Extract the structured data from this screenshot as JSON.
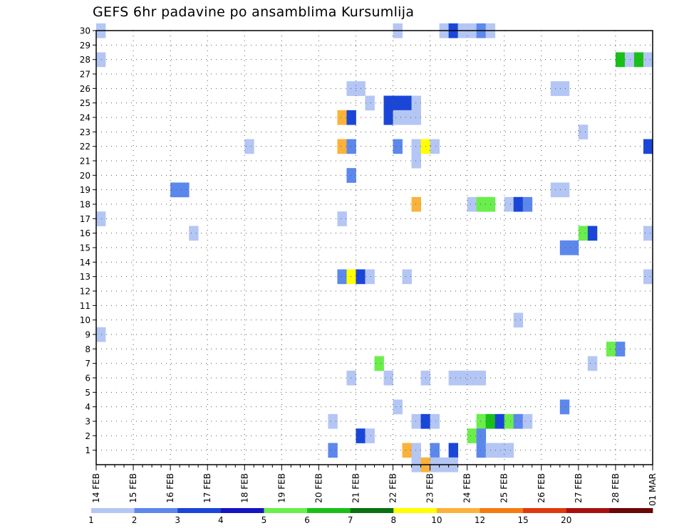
{
  "chart_data": {
    "type": "heatmap",
    "title": "GEFS 6hr padavine po ansamblima Kursumlija",
    "xlabel": "",
    "ylabel": "",
    "x_ticks": [
      "14 FEB",
      "15 FEB",
      "16 FEB",
      "17 FEB",
      "18 FEB",
      "19 FEB",
      "20 FEB",
      "21 FEB",
      "22 FEB",
      "23 FEB",
      "24 FEB",
      "25 FEB",
      "26 FEB",
      "27 FEB",
      "28 FEB",
      "01 MAR"
    ],
    "y_ticks": [
      1,
      2,
      3,
      4,
      5,
      6,
      7,
      8,
      9,
      10,
      11,
      12,
      13,
      14,
      15,
      16,
      17,
      18,
      19,
      20,
      21,
      22,
      23,
      24,
      25,
      26,
      27,
      28,
      29,
      30
    ],
    "xlim_steps": [
      0,
      60
    ],
    "ylim": [
      0,
      30
    ],
    "grid": true,
    "colorbar": {
      "levels": [
        "1",
        "2",
        "3",
        "4",
        "5",
        "6",
        "7",
        "8",
        "10",
        "12",
        "15",
        "20"
      ],
      "colors": [
        "#b4c6f4",
        "#5c88ec",
        "#1a46d8",
        "#1515c0",
        "#6aee4c",
        "#18c018",
        "#0a7010",
        "#ffff00",
        "#fbb23a",
        "#f57a10",
        "#de3a0c",
        "#a81010",
        "#6a0707"
      ]
    },
    "cells": [
      {
        "member": 30,
        "step": 0,
        "value": 1
      },
      {
        "member": 30,
        "step": 32,
        "value": 1
      },
      {
        "member": 30,
        "step": 37,
        "value": 1
      },
      {
        "member": 30,
        "step": 38,
        "value": 3
      },
      {
        "member": 30,
        "step": 39,
        "value": 1
      },
      {
        "member": 30,
        "step": 40,
        "value": 1
      },
      {
        "member": 30,
        "step": 41,
        "value": 2
      },
      {
        "member": 30,
        "step": 42,
        "value": 1
      },
      {
        "member": 28,
        "step": 0,
        "value": 1
      },
      {
        "member": 28,
        "step": 56,
        "value": 6
      },
      {
        "member": 28,
        "step": 57,
        "value": 1
      },
      {
        "member": 28,
        "step": 58,
        "value": 6
      },
      {
        "member": 28,
        "step": 59,
        "value": 1
      },
      {
        "member": 26,
        "step": 27,
        "value": 1
      },
      {
        "member": 26,
        "step": 28,
        "value": 1
      },
      {
        "member": 26,
        "step": 49,
        "value": 1
      },
      {
        "member": 26,
        "step": 50,
        "value": 1
      },
      {
        "member": 25,
        "step": 29,
        "value": 1
      },
      {
        "member": 25,
        "step": 31,
        "value": 3
      },
      {
        "member": 25,
        "step": 32,
        "value": 3
      },
      {
        "member": 25,
        "step": 33,
        "value": 3
      },
      {
        "member": 25,
        "step": 34,
        "value": 1
      },
      {
        "member": 24,
        "step": 26,
        "value": 10
      },
      {
        "member": 24,
        "step": 27,
        "value": 3
      },
      {
        "member": 24,
        "step": 31,
        "value": 3
      },
      {
        "member": 24,
        "step": 32,
        "value": 1
      },
      {
        "member": 24,
        "step": 33,
        "value": 1
      },
      {
        "member": 24,
        "step": 34,
        "value": 1
      },
      {
        "member": 23,
        "step": 52,
        "value": 1
      },
      {
        "member": 22,
        "step": 16,
        "value": 1
      },
      {
        "member": 22,
        "step": 26,
        "value": 10
      },
      {
        "member": 22,
        "step": 27,
        "value": 2
      },
      {
        "member": 22,
        "step": 32,
        "value": 2
      },
      {
        "member": 22,
        "step": 34,
        "value": 1
      },
      {
        "member": 22,
        "step": 35,
        "value": 8
      },
      {
        "member": 22,
        "step": 36,
        "value": 1
      },
      {
        "member": 22,
        "step": 59,
        "value": 3
      },
      {
        "member": 21,
        "step": 34,
        "value": 1
      },
      {
        "member": 20,
        "step": 27,
        "value": 2
      },
      {
        "member": 19,
        "step": 8,
        "value": 2
      },
      {
        "member": 19,
        "step": 9,
        "value": 2
      },
      {
        "member": 19,
        "step": 49,
        "value": 1
      },
      {
        "member": 19,
        "step": 50,
        "value": 1
      },
      {
        "member": 18,
        "step": 34,
        "value": 10
      },
      {
        "member": 18,
        "step": 40,
        "value": 1
      },
      {
        "member": 18,
        "step": 41,
        "value": 5
      },
      {
        "member": 18,
        "step": 42,
        "value": 5
      },
      {
        "member": 18,
        "step": 44,
        "value": 1
      },
      {
        "member": 18,
        "step": 45,
        "value": 3
      },
      {
        "member": 18,
        "step": 46,
        "value": 2
      },
      {
        "member": 17,
        "step": 0,
        "value": 1
      },
      {
        "member": 17,
        "step": 26,
        "value": 1
      },
      {
        "member": 16,
        "step": 10,
        "value": 1
      },
      {
        "member": 16,
        "step": 52,
        "value": 5
      },
      {
        "member": 16,
        "step": 53,
        "value": 3
      },
      {
        "member": 16,
        "step": 59,
        "value": 1
      },
      {
        "member": 15,
        "step": 50,
        "value": 2
      },
      {
        "member": 15,
        "step": 51,
        "value": 2
      },
      {
        "member": 13,
        "step": 26,
        "value": 2
      },
      {
        "member": 13,
        "step": 27,
        "value": 8
      },
      {
        "member": 13,
        "step": 28,
        "value": 3
      },
      {
        "member": 13,
        "step": 29,
        "value": 1
      },
      {
        "member": 13,
        "step": 33,
        "value": 1
      },
      {
        "member": 13,
        "step": 59,
        "value": 1
      },
      {
        "member": 10,
        "step": 45,
        "value": 1
      },
      {
        "member": 9,
        "step": 0,
        "value": 1
      },
      {
        "member": 8,
        "step": 55,
        "value": 5
      },
      {
        "member": 8,
        "step": 56,
        "value": 2
      },
      {
        "member": 7,
        "step": 30,
        "value": 5
      },
      {
        "member": 7,
        "step": 53,
        "value": 1
      },
      {
        "member": 6,
        "step": 27,
        "value": 1
      },
      {
        "member": 6,
        "step": 31,
        "value": 1
      },
      {
        "member": 6,
        "step": 35,
        "value": 1
      },
      {
        "member": 6,
        "step": 38,
        "value": 1
      },
      {
        "member": 6,
        "step": 39,
        "value": 1
      },
      {
        "member": 6,
        "step": 40,
        "value": 1
      },
      {
        "member": 6,
        "step": 41,
        "value": 1
      },
      {
        "member": 4,
        "step": 32,
        "value": 1
      },
      {
        "member": 4,
        "step": 50,
        "value": 2
      },
      {
        "member": 3,
        "step": 25,
        "value": 1
      },
      {
        "member": 3,
        "step": 34,
        "value": 1
      },
      {
        "member": 3,
        "step": 35,
        "value": 3
      },
      {
        "member": 3,
        "step": 36,
        "value": 1
      },
      {
        "member": 3,
        "step": 41,
        "value": 5
      },
      {
        "member": 3,
        "step": 42,
        "value": 6
      },
      {
        "member": 3,
        "step": 43,
        "value": 3
      },
      {
        "member": 3,
        "step": 44,
        "value": 5
      },
      {
        "member": 3,
        "step": 45,
        "value": 2
      },
      {
        "member": 3,
        "step": 46,
        "value": 1
      },
      {
        "member": 2,
        "step": 28,
        "value": 3
      },
      {
        "member": 2,
        "step": 29,
        "value": 1
      },
      {
        "member": 2,
        "step": 40,
        "value": 5
      },
      {
        "member": 2,
        "step": 41,
        "value": 2
      },
      {
        "member": 1,
        "step": 25,
        "value": 2
      },
      {
        "member": 1,
        "step": 33,
        "value": 10
      },
      {
        "member": 1,
        "step": 34,
        "value": 1
      },
      {
        "member": 1,
        "step": 36,
        "value": 2
      },
      {
        "member": 1,
        "step": 38,
        "value": 3
      },
      {
        "member": 1,
        "step": 41,
        "value": 2
      },
      {
        "member": 1,
        "step": 42,
        "value": 1
      },
      {
        "member": 1,
        "step": 43,
        "value": 1
      },
      {
        "member": 1,
        "step": 44,
        "value": 1
      },
      {
        "member": 0,
        "step": 34,
        "value": 1
      },
      {
        "member": 0,
        "step": 35,
        "value": 10
      },
      {
        "member": 0,
        "step": 36,
        "value": 1
      },
      {
        "member": 0,
        "step": 37,
        "value": 1
      },
      {
        "member": 0,
        "step": 38,
        "value": 1
      }
    ]
  }
}
